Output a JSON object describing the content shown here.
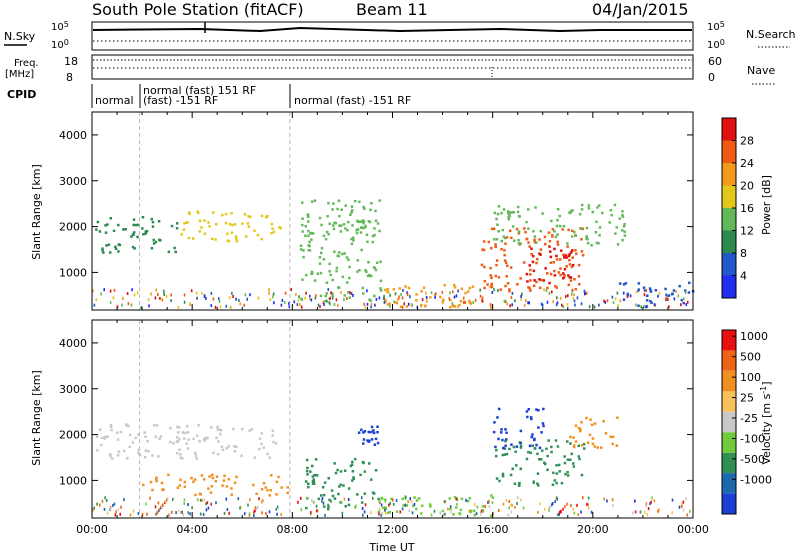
{
  "header": {
    "station": "South Pole Station (fitACF)",
    "beam": "Beam 11",
    "date": "04/Jan/2015"
  },
  "strip": {
    "nsky_label": "N.Sky",
    "nsearch_label": "N.Search",
    "noise_tick_top": "10^5",
    "noise_tick_bottom": "10^0",
    "freq_label_line1": "Freq.",
    "freq_label_line2": "[MHz]",
    "freq_tick_top": "18",
    "freq_tick_bottom": "8",
    "nave_label": "Nave",
    "nave_tick_top": "60",
    "nave_tick_bottom": "0",
    "cpid_label": "CPID",
    "cpid_seg1": "normal",
    "cpid_seg2_line1": "normal (fast) 151 RF",
    "cpid_seg2_line2": "(fast) -151 RF",
    "cpid_seg3": "normal (fast) -151 RF"
  },
  "chart_data": [
    {
      "type": "heatmap",
      "panel": "power",
      "ylabel": "Slant Range [km]",
      "xlabel": "",
      "ylim": [
        180,
        4500
      ],
      "xlim_hours": [
        0,
        24
      ],
      "y_ticks": [
        "1000",
        "2000",
        "3000",
        "4000"
      ],
      "colorbar_label": "Power [dB]",
      "colorbar_ticks": [
        "4",
        "8",
        "12",
        "16",
        "20",
        "24",
        "28"
      ],
      "colorbar_colors": [
        "#1f2ef0",
        "#2258c8",
        "#2d8a4e",
        "#63b95a",
        "#e2c81a",
        "#f39a1f",
        "#ef5a15",
        "#e01010"
      ],
      "blobs": [
        {
          "start": 0.1,
          "end": 3.5,
          "range_lo": 1450,
          "range_hi": 2250,
          "level": 2
        },
        {
          "start": 3.5,
          "end": 7.6,
          "range_lo": 1700,
          "range_hi": 2350,
          "level": 4
        },
        {
          "start": 8.3,
          "end": 11.6,
          "range_lo": 400,
          "range_hi": 2600,
          "level": 3
        },
        {
          "start": 10.5,
          "end": 11.3,
          "range_lo": 1800,
          "range_hi": 2200,
          "level": 3
        },
        {
          "start": 11.2,
          "end": 16.0,
          "range_lo": 250,
          "range_hi": 750,
          "level": 5
        },
        {
          "start": 15.5,
          "end": 19.6,
          "range_lo": 600,
          "range_hi": 2000,
          "level": 6
        },
        {
          "start": 17.3,
          "end": 19.2,
          "range_lo": 700,
          "range_hi": 1600,
          "level": 7
        },
        {
          "start": 16.0,
          "end": 21.3,
          "range_lo": 1600,
          "range_hi": 2500,
          "level": 3
        },
        {
          "start": 21.0,
          "end": 24.0,
          "range_lo": 250,
          "range_hi": 800,
          "level": 1
        }
      ]
    },
    {
      "type": "heatmap",
      "panel": "velocity",
      "ylabel": "Slant Range [km]",
      "xlabel": "Time UT",
      "ylim": [
        180,
        4500
      ],
      "xlim_hours": [
        0,
        24
      ],
      "y_ticks": [
        "1000",
        "2000",
        "3000",
        "4000"
      ],
      "x_ticks": [
        "00:00",
        "04:00",
        "08:00",
        "12:00",
        "16:00",
        "20:00",
        "00:00"
      ],
      "colorbar_label": "Velocity [m s^-1]",
      "colorbar_ticks": [
        "1000",
        "500",
        "100",
        "25",
        "-25",
        "-100",
        "-500",
        "-1000"
      ],
      "colorbar_colors": [
        "#1b3fd0",
        "#1b6ab0",
        "#2f8f55",
        "#6fcb3c",
        "#c8c8c8",
        "#f7c15a",
        "#f09020",
        "#ef6414",
        "#e81010"
      ],
      "blobs": [
        {
          "start": 0.1,
          "end": 7.5,
          "range_lo": 1500,
          "range_hi": 2250,
          "level": 4
        },
        {
          "start": 2.0,
          "end": 8.0,
          "range_lo": 700,
          "range_hi": 1150,
          "level": 6
        },
        {
          "start": 8.5,
          "end": 11.5,
          "range_lo": 400,
          "range_hi": 1500,
          "level": 2
        },
        {
          "start": 10.5,
          "end": 11.4,
          "range_lo": 1800,
          "range_hi": 2200,
          "level": 0
        },
        {
          "start": 11.2,
          "end": 16.0,
          "range_lo": 250,
          "range_hi": 700,
          "level": 3
        },
        {
          "start": 16.0,
          "end": 19.7,
          "range_lo": 900,
          "range_hi": 1900,
          "level": 2
        },
        {
          "start": 19.0,
          "end": 21.0,
          "range_lo": 1700,
          "range_hi": 2400,
          "level": 6
        },
        {
          "start": 16.0,
          "end": 18.0,
          "range_lo": 1700,
          "range_hi": 2600,
          "level": 0
        }
      ]
    }
  ]
}
